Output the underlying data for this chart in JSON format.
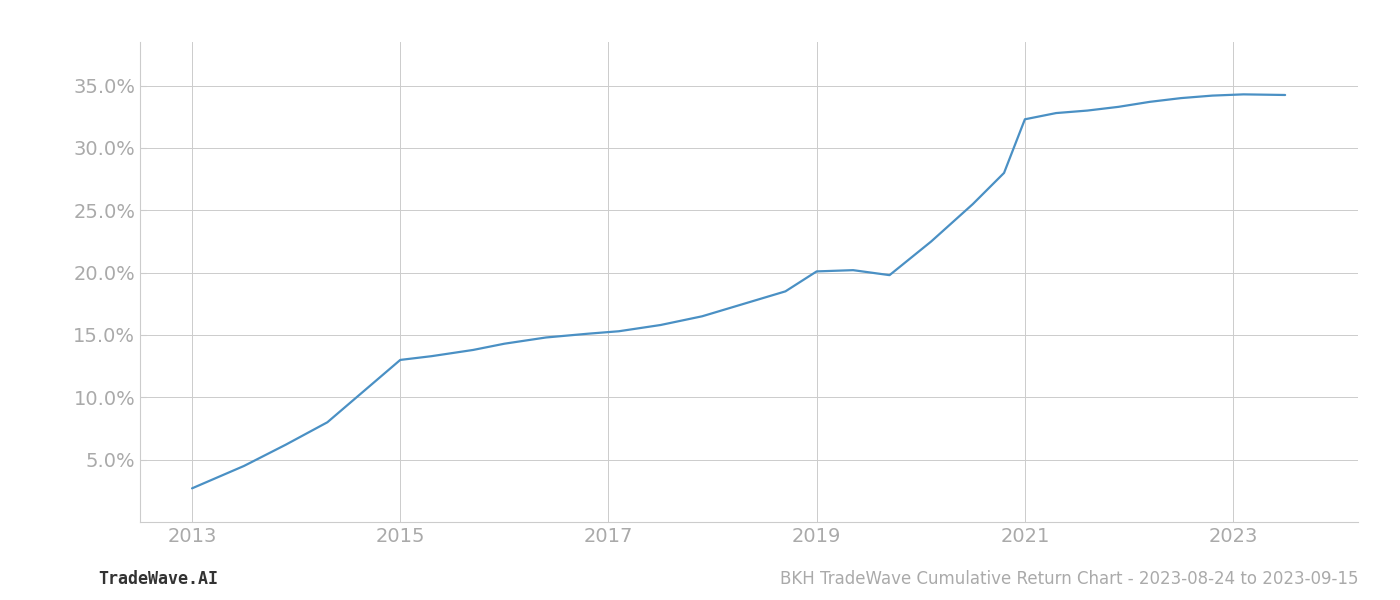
{
  "title": "BKH TradeWave Cumulative Return Chart - 2023-08-24 to 2023-09-15",
  "watermark": "TradeWave.AI",
  "line_color": "#4a90c4",
  "background_color": "#ffffff",
  "grid_color": "#cccccc",
  "x_years": [
    2013.0,
    2013.5,
    2013.9,
    2014.3,
    2014.65,
    2015.0,
    2015.3,
    2015.7,
    2016.0,
    2016.4,
    2016.8,
    2017.1,
    2017.5,
    2017.9,
    2018.3,
    2018.7,
    2019.0,
    2019.35,
    2019.7,
    2020.1,
    2020.5,
    2020.8,
    2021.0,
    2021.3,
    2021.6,
    2021.9,
    2022.2,
    2022.5,
    2022.8,
    2023.1,
    2023.5
  ],
  "y_values": [
    2.7,
    4.5,
    6.2,
    8.0,
    10.5,
    13.0,
    13.3,
    13.8,
    14.3,
    14.8,
    15.1,
    15.3,
    15.8,
    16.5,
    17.5,
    18.5,
    20.1,
    20.2,
    19.8,
    22.5,
    25.5,
    28.0,
    32.3,
    32.8,
    33.0,
    33.3,
    33.7,
    34.0,
    34.2,
    34.3,
    34.25
  ],
  "xlim": [
    2012.5,
    2024.2
  ],
  "ylim": [
    0,
    38.5
  ],
  "xticks": [
    2013,
    2015,
    2017,
    2019,
    2021,
    2023
  ],
  "yticks": [
    5.0,
    10.0,
    15.0,
    20.0,
    25.0,
    30.0,
    35.0
  ],
  "tick_label_color": "#aaaaaa",
  "tick_label_fontsize": 14,
  "footer_fontsize": 12,
  "line_width": 1.6,
  "spine_color": "#cccccc"
}
